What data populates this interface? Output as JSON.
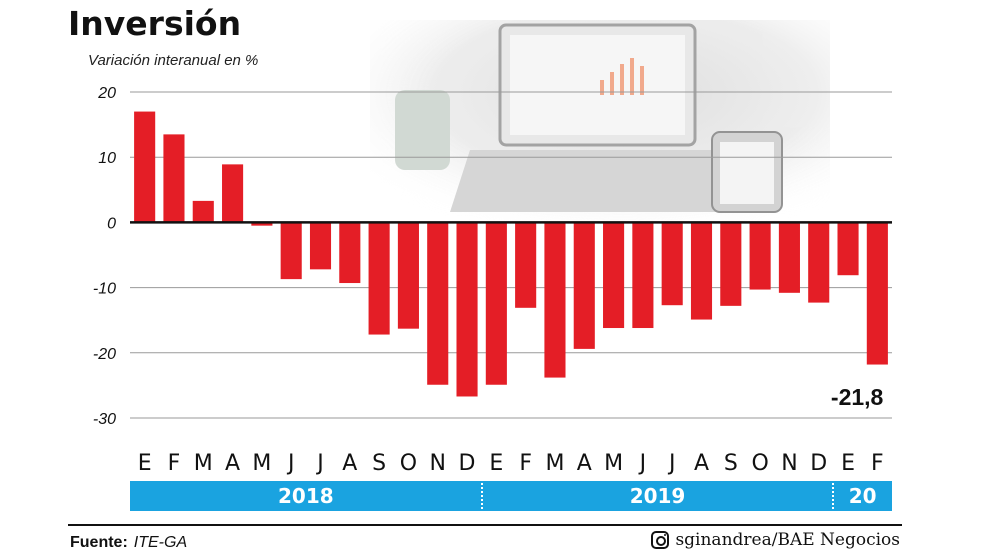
{
  "header": {
    "title": "Inversión",
    "subtitle": "Variación interanual en %"
  },
  "chart_data": {
    "type": "bar",
    "title": "Inversión",
    "ylabel": "Variación interanual en %",
    "xlabel": "",
    "ylim": [
      -30,
      20
    ],
    "yticks": [
      20,
      10,
      0,
      -10,
      -20,
      -30
    ],
    "yticks_labels": [
      "20",
      "10",
      "0",
      "-10",
      "-20",
      "-30"
    ],
    "grid": true,
    "bar_color": "#e41e26",
    "categories": [
      "E",
      "F",
      "M",
      "A",
      "M",
      "J",
      "J",
      "A",
      "S",
      "O",
      "N",
      "D",
      "E",
      "F",
      "M",
      "A",
      "M",
      "J",
      "J",
      "A",
      "S",
      "O",
      "N",
      "D",
      "E",
      "F"
    ],
    "values": [
      17,
      13.5,
      3.3,
      8.9,
      -0.5,
      -8.7,
      -7.2,
      -9.3,
      -17.2,
      -16.3,
      -24.9,
      -26.7,
      -24.9,
      -13.1,
      -23.8,
      -19.4,
      -16.2,
      -16.2,
      -12.7,
      -14.9,
      -12.8,
      -10.3,
      -10.8,
      -12.3,
      -8.1,
      -21.8
    ],
    "annotations": [
      {
        "index": 25,
        "text": "-21,8"
      }
    ],
    "years": [
      {
        "label": "2018",
        "months": 12
      },
      {
        "label": "2019",
        "months": 12
      },
      {
        "label": "20",
        "months": 2
      }
    ]
  },
  "footer": {
    "source_label": "Fuente:",
    "source_value": "ITE-GA",
    "credit": "sginandrea/BAE Negocios",
    "credit_icon": "instagram-icon"
  },
  "colors": {
    "bar": "#e41e26",
    "year_band": "#1aa3e0",
    "grid": "#9a9a9a"
  }
}
